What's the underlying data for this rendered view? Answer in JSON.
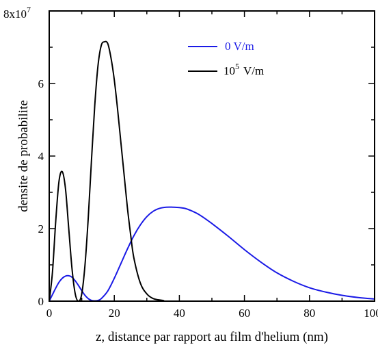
{
  "chart_data": {
    "type": "line",
    "title": "",
    "xlabel": "z, distance par rapport au film d'helium (nm)",
    "ylabel": "densite de probabilite",
    "xlim": [
      0,
      100
    ],
    "ylim": [
      0,
      8
    ],
    "x_ticks": [
      "0",
      "20",
      "40",
      "60",
      "80",
      "100"
    ],
    "y_ticks": [
      "0",
      "2",
      "4",
      "6"
    ],
    "y_top_label": {
      "mantissa": "8x10",
      "exponent": "7"
    },
    "y_multiplier": 10000000,
    "grid": false,
    "legend_position": "top-right",
    "series": [
      {
        "name": "0 V/m",
        "legend_text": "0 V/m",
        "color": "#1a1ae6",
        "x": [
          0,
          1,
          2,
          3,
          4,
          5,
          6,
          7,
          8,
          9,
          10,
          11,
          12,
          13,
          14,
          15,
          16,
          18,
          20,
          22,
          24,
          26,
          28,
          30,
          32,
          34,
          36,
          38,
          40,
          42,
          44,
          46,
          48,
          50,
          55,
          60,
          65,
          70,
          75,
          80,
          85,
          90,
          95,
          100
        ],
        "y": [
          0,
          0.18,
          0.36,
          0.52,
          0.63,
          0.69,
          0.7,
          0.66,
          0.56,
          0.43,
          0.29,
          0.16,
          0.07,
          0.02,
          0.01,
          0.02,
          0.07,
          0.28,
          0.63,
          1.03,
          1.43,
          1.8,
          2.1,
          2.33,
          2.48,
          2.56,
          2.59,
          2.59,
          2.58,
          2.55,
          2.48,
          2.39,
          2.27,
          2.14,
          1.79,
          1.42,
          1.08,
          0.78,
          0.55,
          0.37,
          0.25,
          0.16,
          0.1,
          0.06
        ]
      },
      {
        "name": "10^5 V/m",
        "legend_text": {
          "mantissa": "10",
          "exponent": "5",
          "unit": "V/m"
        },
        "color": "#000000",
        "x": [
          0,
          1,
          2,
          3,
          4,
          5,
          6,
          7,
          8,
          9,
          10,
          11,
          12,
          13,
          14,
          15,
          16,
          17,
          18,
          19,
          20,
          21,
          22,
          23,
          24,
          25,
          26,
          28,
          30,
          32,
          35,
          40,
          100
        ],
        "y": [
          0,
          0.8,
          2.2,
          3.3,
          3.57,
          3.1,
          2.0,
          0.9,
          0.2,
          0.0,
          0.2,
          1.0,
          2.3,
          3.9,
          5.4,
          6.5,
          7.05,
          7.15,
          7.1,
          6.7,
          6.1,
          5.3,
          4.4,
          3.5,
          2.6,
          1.85,
          1.2,
          0.5,
          0.2,
          0.07,
          0.02,
          0.0,
          0.0
        ]
      }
    ]
  }
}
